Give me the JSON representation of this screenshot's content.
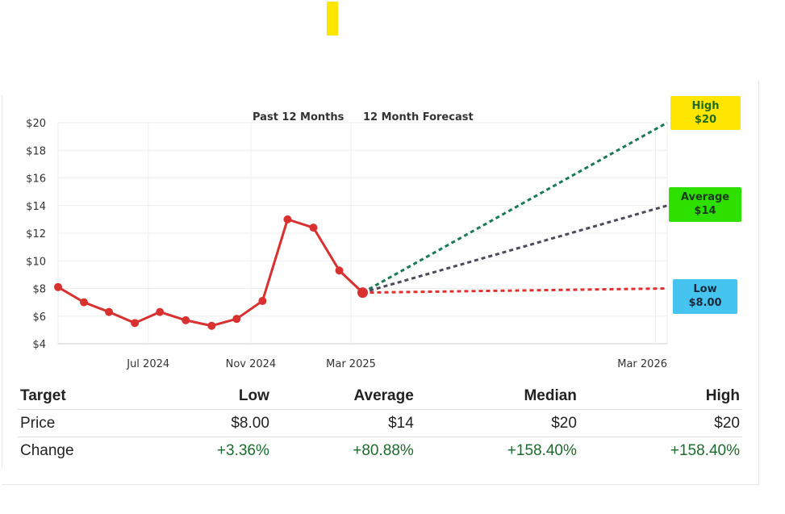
{
  "chart_data": {
    "type": "line",
    "legend": [
      "Past 12 Months",
      "12 Month Forecast"
    ],
    "y_ticks": [
      "$20",
      "$18",
      "$16",
      "$14",
      "$12",
      "$10",
      "$8",
      "$6",
      "$4"
    ],
    "ylim": [
      4,
      20
    ],
    "x_ticks": [
      {
        "label": "Jul 2024",
        "date": "2024-07-01"
      },
      {
        "label": "Nov 2024",
        "date": "2024-11-01"
      },
      {
        "label": "Mar 2025",
        "date": "2025-03-01"
      },
      {
        "label": "Mar 2026",
        "date": "2026-03-01"
      }
    ],
    "series": [
      {
        "name": "Past 12 Months",
        "color": "#d93030",
        "points": [
          {
            "date": "2024-03-15",
            "value": 8.1
          },
          {
            "date": "2024-04-15",
            "value": 7.0
          },
          {
            "date": "2024-05-15",
            "value": 6.3
          },
          {
            "date": "2024-06-15",
            "value": 5.5
          },
          {
            "date": "2024-07-15",
            "value": 6.3
          },
          {
            "date": "2024-08-15",
            "value": 5.7
          },
          {
            "date": "2024-09-15",
            "value": 5.3
          },
          {
            "date": "2024-10-15",
            "value": 5.8
          },
          {
            "date": "2024-11-15",
            "value": 7.1
          },
          {
            "date": "2024-12-15",
            "value": 13.0
          },
          {
            "date": "2025-01-15",
            "value": 12.4
          },
          {
            "date": "2025-02-15",
            "value": 9.3
          },
          {
            "date": "2025-03-15",
            "value": 7.7
          }
        ]
      }
    ],
    "forecast": {
      "start": {
        "date": "2025-03-15",
        "value": 7.7
      },
      "end_date": "2026-03-15",
      "lines": [
        {
          "label": "High",
          "value_label": "$20",
          "value": 20,
          "color": "#1a7a55",
          "box_color": "#ffe600",
          "text_color": "#1f6b1f"
        },
        {
          "label": "Average",
          "value_label": "$14",
          "value": 14,
          "color": "#4a4a5a",
          "box_color": "#2ee000",
          "text_color": "#1a3a1a"
        },
        {
          "label": "Low",
          "value_label": "$8.00",
          "value": 8.0,
          "color": "#e03030",
          "box_color": "#45c4f0",
          "text_color": "#1a2a3a"
        }
      ]
    }
  },
  "table": {
    "headers": [
      "Target",
      "Low",
      "Average",
      "Median",
      "High"
    ],
    "rows": [
      {
        "label": "Price",
        "values": [
          "$8.00",
          "$14",
          "$20",
          "$20"
        ]
      },
      {
        "label": "Change",
        "values": [
          "+3.36%",
          "+80.88%",
          "+158.40%",
          "+158.40%"
        ]
      }
    ]
  }
}
